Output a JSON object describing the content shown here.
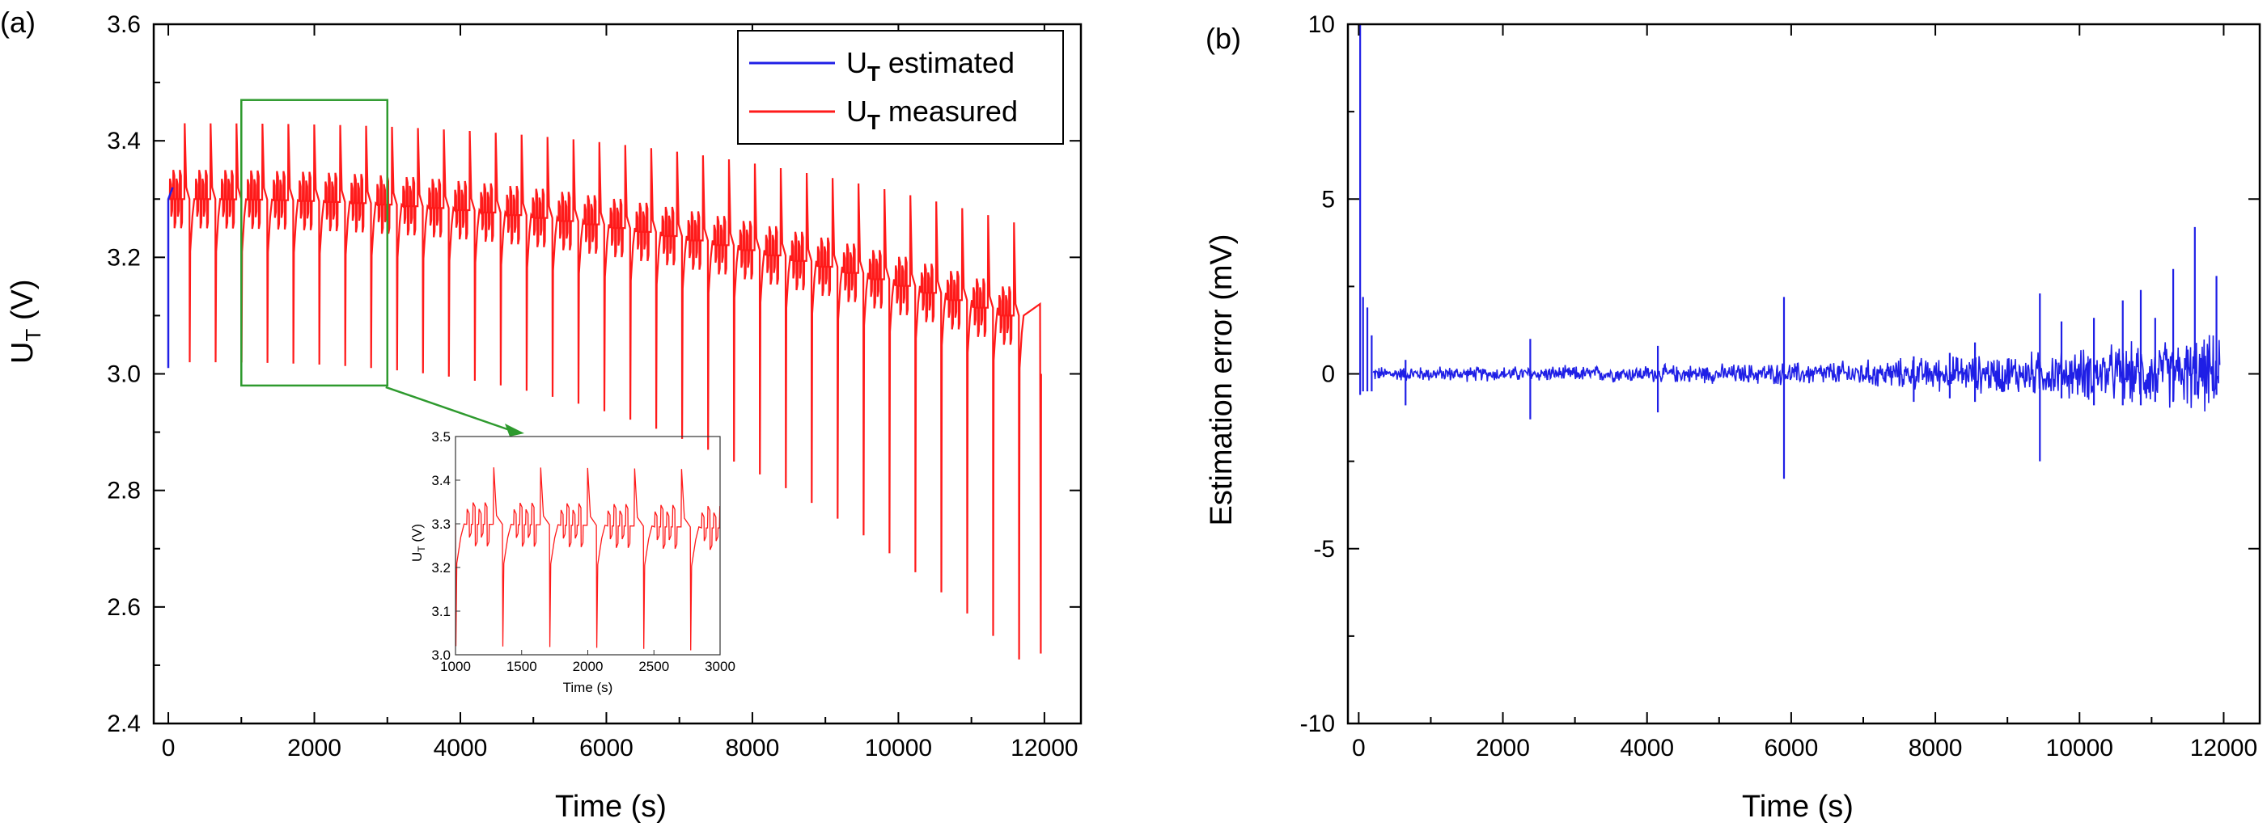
{
  "colors": {
    "estimated": "#1f1fe6",
    "measured": "#ff1a1a",
    "zoom_box": "#2e9a2e",
    "axis": "#000000"
  },
  "chart_data": [
    {
      "panel": "(a)",
      "type": "line",
      "xlabel": "Time (s)",
      "ylabel_main": "U",
      "ylabel_sub": "T",
      "ylabel_unit": " (V)",
      "xlim": [
        -200,
        12500
      ],
      "ylim": [
        2.4,
        3.6
      ],
      "xticks": [
        0,
        2000,
        4000,
        6000,
        8000,
        10000,
        12000
      ],
      "yticks": [
        2.4,
        2.6,
        2.8,
        3.0,
        3.2,
        3.4,
        3.6
      ],
      "ytick_labels": [
        "2.4",
        "2.6",
        "2.8",
        "3.0",
        "3.2",
        "3.4",
        "3.6"
      ],
      "legend": {
        "position": "top-right",
        "entries": [
          {
            "name": "U",
            "sub": "T",
            "rest": " estimated",
            "color_key": "estimated"
          },
          {
            "name": "U",
            "sub": "T",
            "rest": " measured",
            "color_key": "measured"
          }
        ]
      },
      "series": [
        {
          "name": "U_T estimated",
          "color_key": "estimated",
          "note": "overlaps measured trace; visible only at start",
          "start": {
            "t": [
              0,
              0,
              60
            ],
            "v": [
              3.01,
              3.3,
              3.32
            ]
          }
        },
        {
          "name": "U_T measured",
          "color_key": "measured",
          "pulse_period_s": 355,
          "pulse_start_s": 0,
          "pulse_end_s": 11950,
          "plateau_start_v": 3.3,
          "plateau_end_v": 3.1,
          "peak_start_v": 3.43,
          "peak_end_v": 3.26,
          "dip_start_v": 3.02,
          "dip_end_v": 2.51,
          "final_v": 3.0
        }
      ],
      "zoom_box": {
        "x": [
          1000,
          3000
        ],
        "y": [
          2.98,
          3.47
        ]
      },
      "inset": {
        "xlabel": "Time (s)",
        "ylabel_main": "U",
        "ylabel_sub": "T",
        "ylabel_unit": " (V)",
        "xlim": [
          1000,
          3000
        ],
        "ylim": [
          3.0,
          3.5
        ],
        "xticks": [
          1000,
          1500,
          2000,
          2500,
          3000
        ],
        "yticks": [
          3.0,
          3.1,
          3.2,
          3.3,
          3.4,
          3.5
        ],
        "ytick_labels": [
          "3.0",
          "3.1",
          "3.2",
          "3.3",
          "3.4",
          "3.5"
        ]
      }
    },
    {
      "panel": "(b)",
      "type": "line",
      "xlabel": "Time (s)",
      "ylabel": "Estimation error (mV)",
      "xlim": [
        -150,
        12500
      ],
      "ylim": [
        -10,
        10
      ],
      "xticks": [
        0,
        2000,
        4000,
        6000,
        8000,
        10000,
        12000
      ],
      "yticks": [
        -10,
        -5,
        0,
        5,
        10
      ],
      "ytick_labels": [
        "-10",
        "-5",
        "0",
        "5",
        "10"
      ],
      "series": [
        {
          "name": "Estimation error",
          "color_key": "estimated",
          "spikes": [
            {
              "t": 20,
              "hi": 10,
              "lo": -0.6
            },
            {
              "t": 60,
              "hi": 2.2,
              "lo": -0.5
            },
            {
              "t": 120,
              "hi": 1.9,
              "lo": -0.5
            },
            {
              "t": 180,
              "hi": 1.1,
              "lo": -0.5
            },
            {
              "t": 650,
              "hi": 0.4,
              "lo": -0.9
            },
            {
              "t": 2380,
              "hi": 1.0,
              "lo": -1.3
            },
            {
              "t": 4150,
              "hi": 0.8,
              "lo": -1.1
            },
            {
              "t": 5900,
              "hi": 2.2,
              "lo": -3.0
            },
            {
              "t": 7700,
              "hi": 0.5,
              "lo": -0.8
            },
            {
              "t": 8200,
              "hi": 0.6,
              "lo": -0.7
            },
            {
              "t": 8550,
              "hi": 0.9,
              "lo": -0.8
            },
            {
              "t": 9450,
              "hi": 2.3,
              "lo": -2.5
            },
            {
              "t": 9750,
              "hi": 1.5,
              "lo": -0.7
            },
            {
              "t": 10200,
              "hi": 1.6,
              "lo": -0.9
            },
            {
              "t": 10600,
              "hi": 2.1,
              "lo": -0.9
            },
            {
              "t": 10850,
              "hi": 2.4,
              "lo": -0.9
            },
            {
              "t": 11050,
              "hi": 1.6,
              "lo": -0.8
            },
            {
              "t": 11300,
              "hi": 3.0,
              "lo": -0.8
            },
            {
              "t": 11600,
              "hi": 4.2,
              "lo": -0.6
            },
            {
              "t": 11900,
              "hi": 2.8,
              "lo": -0.6
            }
          ],
          "noise_band_start_mv": 0.25,
          "noise_band_end_mv": 1.3
        }
      ]
    }
  ]
}
